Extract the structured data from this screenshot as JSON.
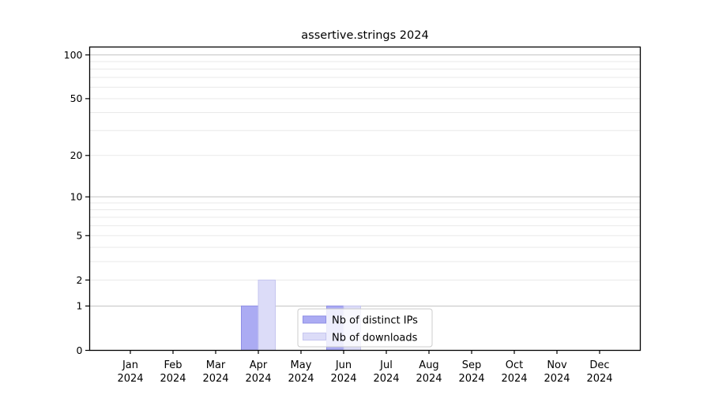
{
  "chart_data": {
    "type": "bar",
    "title": "assertive.strings 2024",
    "categories": [
      "Jan",
      "Feb",
      "Mar",
      "Apr",
      "May",
      "Jun",
      "Jul",
      "Aug",
      "Sep",
      "Oct",
      "Nov",
      "Dec"
    ],
    "year": "2024",
    "series": [
      {
        "name": "Nb of distinct IPs",
        "color": "#ababf3",
        "edge_color": "#8f8fe6",
        "values": [
          0,
          0,
          0,
          1,
          0,
          1,
          0,
          0,
          0,
          0,
          0,
          0
        ]
      },
      {
        "name": "Nb of downloads",
        "color": "#dcdcf8",
        "edge_color": "#c6c6ef",
        "values": [
          0,
          0,
          0,
          2,
          0,
          1,
          0,
          0,
          0,
          0,
          0,
          0
        ]
      }
    ],
    "xlabel": "",
    "ylabel": "",
    "y_axis": {
      "scale": "log1p",
      "ylim": [
        0,
        100
      ],
      "tick_values": [
        0,
        1,
        2,
        5,
        10,
        20,
        50,
        100
      ],
      "tick_labels": [
        "0",
        "1",
        "2",
        "5",
        "10",
        "20",
        "50",
        "100"
      ],
      "major_grid_values": [
        1,
        10,
        100
      ],
      "minor_grid_values": [
        2,
        3,
        4,
        5,
        6,
        7,
        8,
        9,
        20,
        30,
        40,
        50,
        60,
        70,
        80,
        90
      ]
    },
    "grid": "horizontal",
    "legend_position": "lower center, inside plot",
    "colors": {
      "background": "#ffffff",
      "spine": "#000000",
      "grid_major": "#c3c3c3",
      "grid_minor": "#e9e9e9",
      "tick_text": "#000000",
      "legend_border": "#cccccc",
      "legend_background": "rgba(255,255,255,0.8)"
    }
  }
}
